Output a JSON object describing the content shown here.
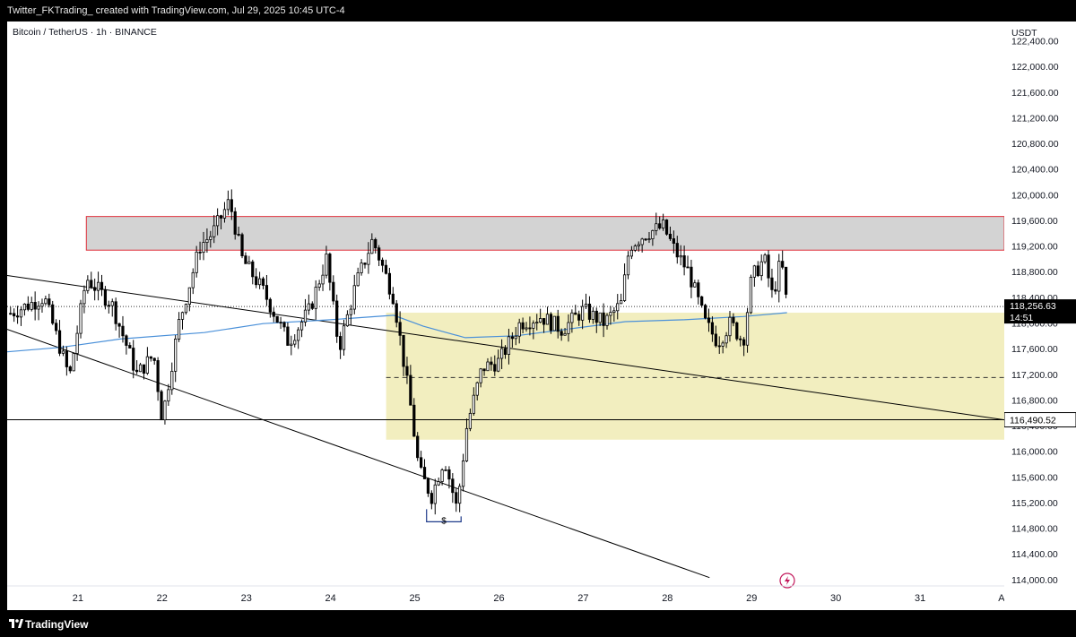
{
  "header": {
    "caption": "Twitter_FKTrading_  created with TradingView.com, Jul 29, 2025 10:45 UTC-4"
  },
  "symbol": {
    "title": "Bitcoin / TetherUS · 1h · BINANCE"
  },
  "footer": {
    "brand": "TradingView"
  },
  "colors": {
    "up": "#ffffff",
    "down": "#000000",
    "wick": "#000000",
    "ma": "#4a90d9",
    "resistance_fill": "#d3d3d3",
    "resistance_border": "#e0303c",
    "support_fill": "#f2eebf",
    "price_label_bg": "#000000"
  },
  "chart_data": {
    "type": "candlestick",
    "title": "Bitcoin / TetherUS · 1h · BINANCE",
    "ylabel": "USDT",
    "ylim": [
      113900,
      122700
    ],
    "y_ticks": [
      "122,400.00",
      "122,000.00",
      "121,600.00",
      "121,200.00",
      "120,800.00",
      "120,400.00",
      "120,000.00",
      "119,600.00",
      "119,200.00",
      "118,800.00",
      "118,400.00",
      "118,000.00",
      "117,600.00",
      "117,200.00",
      "116,800.00",
      "116,400.00",
      "116,000.00",
      "115,600.00",
      "115,200.00",
      "114,800.00",
      "114,400.00",
      "114,000.00"
    ],
    "x_ticks": [
      "21",
      "22",
      "23",
      "24",
      "25",
      "26",
      "27",
      "28",
      "29",
      "30",
      "31",
      "Au"
    ],
    "x_tick_days": [
      21,
      22,
      23,
      24,
      25,
      26,
      27,
      28,
      29,
      30,
      31,
      32
    ],
    "xlim_days": [
      20.16,
      32.0
    ],
    "last_price": {
      "label": "118,256.63",
      "countdown": "14:51",
      "value": 118256.63
    },
    "marked_level": {
      "label": "116,490.52",
      "value": 116490.52
    },
    "zones": [
      {
        "name": "resistance",
        "x_start": 21.1,
        "x_end": 32.0,
        "y_low": 119135,
        "y_high": 119660
      },
      {
        "name": "demand",
        "x_start": 24.66,
        "x_end": 32.0,
        "y_low": 116180,
        "y_high": 118160,
        "midline": 117150
      }
    ],
    "trendlines": [
      {
        "x1": 20.16,
        "y1": 118740,
        "x2": 32.0,
        "y2": 116490
      },
      {
        "x1": 20.16,
        "y1": 117900,
        "x2": 28.5,
        "y2": 114030
      }
    ],
    "liquidity_mark": {
      "label": "$",
      "x1": 25.14,
      "x2": 25.55,
      "y": 114900
    },
    "key_points": [
      {
        "day": 20.2,
        "price": 118150
      },
      {
        "day": 20.6,
        "price": 118400
      },
      {
        "day": 20.9,
        "price": 117150
      },
      {
        "day": 21.1,
        "price": 118700
      },
      {
        "day": 21.4,
        "price": 118300
      },
      {
        "day": 21.7,
        "price": 117200
      },
      {
        "day": 21.9,
        "price": 117500
      },
      {
        "day": 22.0,
        "price": 116500
      },
      {
        "day": 22.2,
        "price": 118000
      },
      {
        "day": 22.45,
        "price": 119200
      },
      {
        "day": 22.6,
        "price": 119400
      },
      {
        "day": 22.8,
        "price": 119900
      },
      {
        "day": 22.95,
        "price": 119000
      },
      {
        "day": 23.2,
        "price": 118500
      },
      {
        "day": 23.5,
        "price": 117700
      },
      {
        "day": 23.75,
        "price": 118200
      },
      {
        "day": 23.95,
        "price": 119000
      },
      {
        "day": 24.1,
        "price": 117600
      },
      {
        "day": 24.3,
        "price": 118600
      },
      {
        "day": 24.5,
        "price": 119300
      },
      {
        "day": 24.75,
        "price": 118400
      },
      {
        "day": 24.95,
        "price": 116700
      },
      {
        "day": 25.05,
        "price": 115700
      },
      {
        "day": 25.2,
        "price": 115300
      },
      {
        "day": 25.35,
        "price": 115900
      },
      {
        "day": 25.5,
        "price": 115100
      },
      {
        "day": 25.62,
        "price": 116400
      },
      {
        "day": 25.8,
        "price": 117300
      },
      {
        "day": 26.0,
        "price": 117400
      },
      {
        "day": 26.25,
        "price": 118000
      },
      {
        "day": 26.5,
        "price": 118100
      },
      {
        "day": 26.75,
        "price": 117900
      },
      {
        "day": 27.0,
        "price": 118200
      },
      {
        "day": 27.25,
        "price": 118000
      },
      {
        "day": 27.45,
        "price": 118300
      },
      {
        "day": 27.55,
        "price": 119200
      },
      {
        "day": 27.75,
        "price": 119400
      },
      {
        "day": 27.95,
        "price": 119500
      },
      {
        "day": 28.1,
        "price": 119100
      },
      {
        "day": 28.25,
        "price": 118800
      },
      {
        "day": 28.45,
        "price": 118000
      },
      {
        "day": 28.6,
        "price": 117700
      },
      {
        "day": 28.75,
        "price": 118000
      },
      {
        "day": 28.9,
        "price": 117700
      },
      {
        "day": 29.0,
        "price": 118700
      },
      {
        "day": 29.15,
        "price": 119000
      },
      {
        "day": 29.25,
        "price": 118400
      },
      {
        "day": 29.35,
        "price": 119000
      },
      {
        "day": 29.42,
        "price": 118256.63
      }
    ],
    "moving_average": [
      {
        "day": 20.16,
        "price": 117550
      },
      {
        "day": 20.8,
        "price": 117620
      },
      {
        "day": 21.5,
        "price": 117750
      },
      {
        "day": 22.5,
        "price": 117850
      },
      {
        "day": 23.2,
        "price": 117990
      },
      {
        "day": 24.0,
        "price": 118050
      },
      {
        "day": 24.75,
        "price": 118120
      },
      {
        "day": 25.1,
        "price": 117950
      },
      {
        "day": 25.6,
        "price": 117770
      },
      {
        "day": 26.2,
        "price": 117800
      },
      {
        "day": 26.8,
        "price": 117900
      },
      {
        "day": 27.5,
        "price": 118020
      },
      {
        "day": 28.2,
        "price": 118050
      },
      {
        "day": 28.9,
        "price": 118100
      },
      {
        "day": 29.42,
        "price": 118160
      }
    ]
  }
}
